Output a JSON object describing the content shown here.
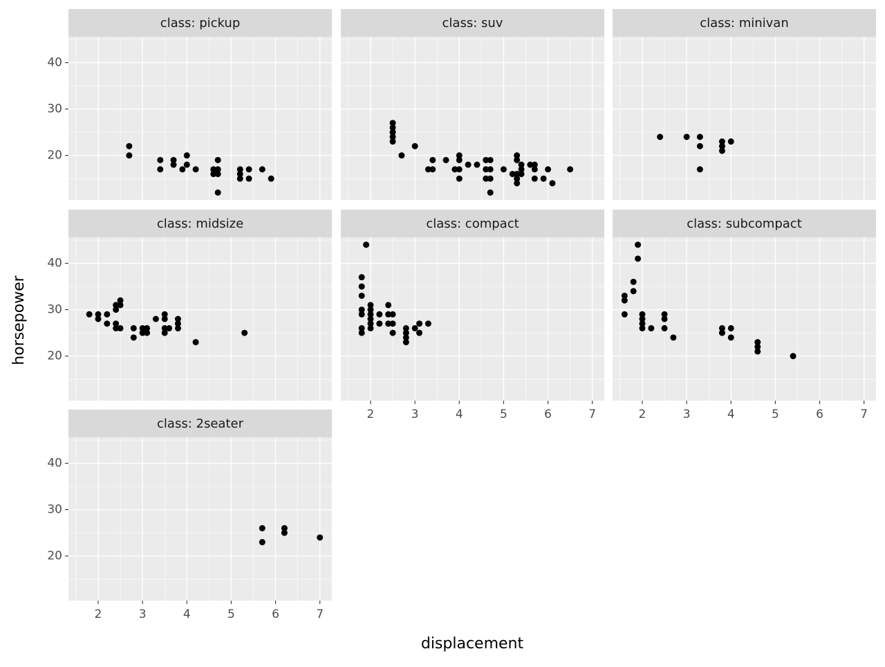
{
  "facet_axes": {
    "xlabel": "displacement",
    "ylabel": "horsepower",
    "xlim": [
      1.33,
      7.27
    ],
    "ylim": [
      10.4,
      45.6
    ],
    "xticks": [
      2,
      3,
      4,
      5,
      6,
      7
    ],
    "yticks": [
      20,
      30,
      40
    ],
    "minor_xticks": [
      1.5,
      2.5,
      3.5,
      4.5,
      5.5,
      6.5
    ],
    "minor_yticks": [
      15,
      25,
      35,
      45
    ],
    "grid": true,
    "point_color": "#000000",
    "panel_color": "#ebebeb",
    "strip_color": "#d9d9d9"
  },
  "chart_data": [
    {
      "type": "scatter",
      "title": "class: pickup",
      "x": [
        2.7,
        2.7,
        3.4,
        3.4,
        3.7,
        3.7,
        3.9,
        4.0,
        4.0,
        4.2,
        4.6,
        4.6,
        4.7,
        4.7,
        4.7,
        4.7,
        5.2,
        5.2,
        5.2,
        5.4,
        5.4,
        5.7,
        5.9
      ],
      "y": [
        22,
        20,
        19,
        17,
        19,
        18,
        17,
        20,
        18,
        17,
        17,
        16,
        19,
        17,
        16,
        12,
        17,
        16,
        15,
        17,
        15,
        17,
        15
      ]
    },
    {
      "type": "scatter",
      "title": "class: suv",
      "x": [
        2.5,
        2.5,
        2.5,
        2.5,
        2.5,
        2.7,
        3.0,
        3.3,
        3.4,
        3.4,
        3.7,
        3.9,
        4.0,
        4.0,
        4.0,
        4.0,
        4.2,
        4.4,
        4.6,
        4.6,
        4.6,
        4.7,
        4.7,
        4.7,
        4.7,
        5.0,
        5.2,
        5.3,
        5.3,
        5.3,
        5.3,
        5.3,
        5.4,
        5.4,
        5.4,
        5.6,
        5.7,
        5.7,
        5.7,
        5.9,
        6.0,
        6.1,
        6.5
      ],
      "y": [
        27,
        26,
        25,
        24,
        23,
        20,
        22,
        17,
        17,
        19,
        19,
        17,
        20,
        19,
        17,
        15,
        18,
        18,
        19,
        17,
        15,
        19,
        17,
        15,
        12,
        17,
        16,
        20,
        19,
        16,
        15,
        14,
        18,
        17,
        16,
        18,
        18,
        17,
        15,
        15,
        17,
        14,
        17
      ]
    },
    {
      "type": "scatter",
      "title": "class: minivan",
      "x": [
        2.4,
        3.0,
        3.3,
        3.3,
        3.3,
        3.8,
        3.8,
        3.8,
        4.0
      ],
      "y": [
        24,
        24,
        24,
        22,
        17,
        23,
        22,
        21,
        23
      ]
    },
    {
      "type": "scatter",
      "title": "class: midsize",
      "x": [
        1.8,
        2.0,
        2.0,
        2.2,
        2.2,
        2.4,
        2.4,
        2.4,
        2.4,
        2.5,
        2.5,
        2.5,
        2.8,
        2.8,
        3.0,
        3.0,
        3.1,
        3.1,
        3.3,
        3.5,
        3.5,
        3.5,
        3.5,
        3.6,
        3.8,
        3.8,
        3.8,
        4.2,
        5.3
      ],
      "y": [
        29,
        29,
        28,
        29,
        27,
        31,
        30,
        27,
        26,
        32,
        31,
        26,
        26,
        24,
        26,
        25,
        26,
        25,
        28,
        29,
        28,
        26,
        25,
        26,
        28,
        27,
        26,
        23,
        25
      ]
    },
    {
      "type": "scatter",
      "title": "class: compact",
      "x": [
        1.8,
        1.8,
        1.8,
        1.8,
        1.8,
        1.8,
        1.8,
        1.9,
        2.0,
        2.0,
        2.0,
        2.0,
        2.0,
        2.0,
        2.2,
        2.2,
        2.4,
        2.4,
        2.4,
        2.5,
        2.5,
        2.5,
        2.8,
        2.8,
        2.8,
        2.8,
        3.0,
        3.1,
        3.1,
        3.3
      ],
      "y": [
        37,
        35,
        33,
        30,
        29,
        26,
        25,
        44,
        31,
        30,
        29,
        28,
        27,
        26,
        29,
        27,
        31,
        29,
        27,
        29,
        27,
        25,
        26,
        25,
        24,
        23,
        26,
        27,
        25,
        27
      ]
    },
    {
      "type": "scatter",
      "title": "class: subcompact",
      "x": [
        1.6,
        1.6,
        1.6,
        1.8,
        1.8,
        1.9,
        1.9,
        2.0,
        2.0,
        2.0,
        2.0,
        2.2,
        2.5,
        2.5,
        2.5,
        2.7,
        3.8,
        3.8,
        4.0,
        4.0,
        4.6,
        4.6,
        4.6,
        5.4
      ],
      "y": [
        33,
        32,
        29,
        36,
        34,
        44,
        41,
        29,
        28,
        27,
        26,
        26,
        29,
        28,
        26,
        24,
        26,
        25,
        26,
        24,
        23,
        22,
        21,
        20
      ]
    },
    {
      "type": "scatter",
      "title": "class: 2seater",
      "x": [
        5.7,
        5.7,
        6.2,
        6.2,
        7.0
      ],
      "y": [
        26,
        23,
        26,
        25,
        24
      ]
    }
  ]
}
